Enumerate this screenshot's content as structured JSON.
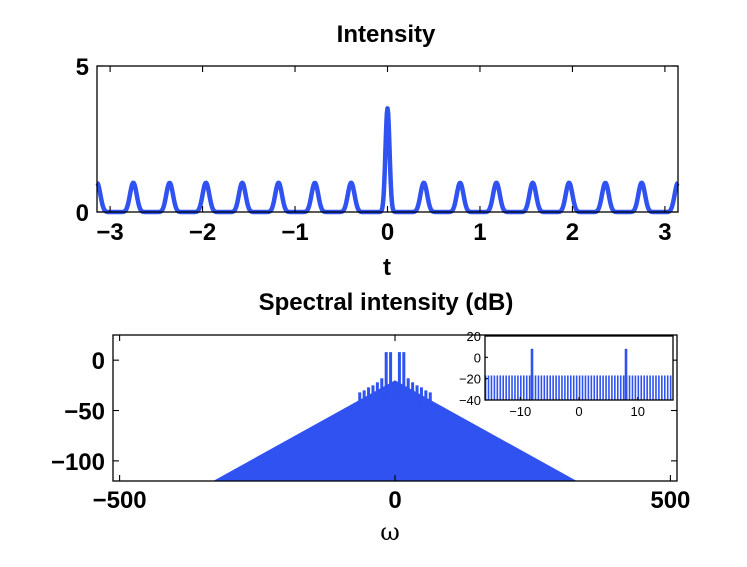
{
  "chart_data": [
    {
      "type": "line",
      "title": "Intensity",
      "xlabel": "t",
      "ylabel": "",
      "xlim": [
        -3.14159,
        3.14159
      ],
      "ylim": [
        0,
        5
      ],
      "xticks": [
        "−3",
        "−2",
        "−1",
        "0",
        "1",
        "2",
        "3"
      ],
      "yticks": [
        "0",
        "5"
      ],
      "series": [
        {
          "name": "intensity",
          "color": "#2f52f0",
          "peak_positions": [
            -3.1416,
            -2.7489,
            -2.3562,
            -1.9635,
            -1.5708,
            -1.1781,
            -0.7854,
            -0.3927,
            0.3927,
            0.7854,
            1.1781,
            1.5708,
            1.9635,
            2.3562,
            2.7489,
            3.1416
          ],
          "peak_value": 1.0,
          "central_peak": {
            "t": 0,
            "value": 3.55
          }
        }
      ]
    },
    {
      "type": "bar",
      "title": "Spectral intensity (dB)",
      "xlabel": "ω",
      "ylabel": "",
      "xlim": [
        -512,
        512
      ],
      "ylim": [
        -120,
        25
      ],
      "xticks": [
        "−500",
        "0",
        "500"
      ],
      "yticks": [
        "0",
        "−50",
        "−100"
      ],
      "series": [
        {
          "name": "spectrum envelope",
          "color": "#2f52f0",
          "x": [
            -330,
            0,
            330
          ],
          "values": [
            -120,
            -20,
            -120
          ]
        },
        {
          "name": "comb lines",
          "color": "#2f52f0",
          "x": [
            -64,
            -56,
            -48,
            -40,
            -32,
            -24,
            -16,
            -8,
            8,
            16,
            24,
            32,
            40,
            48,
            56,
            64
          ],
          "values": [
            -32,
            -30,
            -27,
            -25,
            -22,
            -18,
            8,
            8,
            8,
            8,
            -18,
            -22,
            -25,
            -27,
            -30,
            -32
          ]
        }
      ]
    },
    {
      "type": "bar",
      "title": "",
      "xlabel": "",
      "ylabel": "",
      "xlim": [
        -16,
        16
      ],
      "ylim": [
        -40,
        20
      ],
      "xticks": [
        "−10",
        "0",
        "10"
      ],
      "yticks": [
        "20",
        "0",
        "−20",
        "−40"
      ],
      "series": [
        {
          "name": "inset spectrum",
          "color": "#2f52f0",
          "baseline": -17,
          "peaks": [
            {
              "x": -8,
              "value": 8
            },
            {
              "x": 8,
              "value": 8
            }
          ]
        }
      ]
    }
  ]
}
